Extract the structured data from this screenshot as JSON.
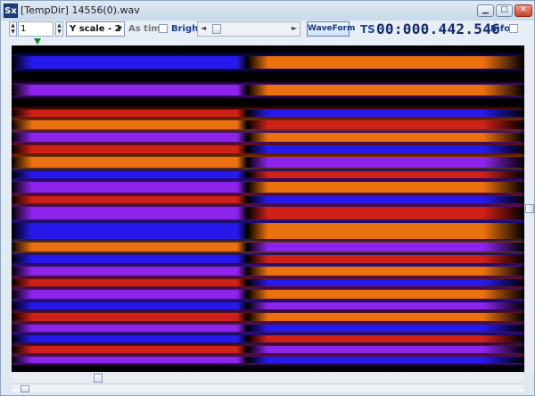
{
  "window": {
    "app_icon_text": "Sx",
    "title": "[TempDir] 14556(0).wav",
    "minimize_glyph": "▁",
    "maximize_glyph": "□",
    "close_glyph": "✕"
  },
  "toolbar": {
    "channel_value": "1",
    "spin_up": "▲",
    "spin_down": "▼",
    "y_scale_value": "Y scale - 2",
    "dropdown_arrow": "▼",
    "as_time_label": "As time",
    "bright_label": "Bright",
    "scroll_left": "◄",
    "scroll_right": "►",
    "waveform_label": "WaveForm",
    "ts_label": "TS",
    "timestamp": "00:000.442.546",
    "info_label": "Info"
  },
  "colors": {
    "background": "#000000",
    "blue": "#2a1cff",
    "violet": "#9a28ff",
    "magenta": "#c02ad0",
    "red": "#e0241a",
    "orange": "#ff7a10",
    "yellow": "#ffc23a",
    "marker": "#0a8a2a"
  }
}
